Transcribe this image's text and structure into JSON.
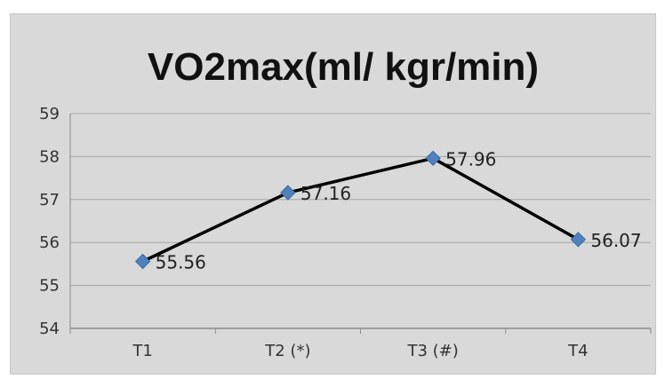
{
  "chart_data": {
    "type": "line",
    "title": "VO2max(ml/ kgr/min)",
    "xlabel": "",
    "ylabel": "",
    "categories": [
      "T1",
      "T2 (*)",
      "T3 (#)",
      "T4"
    ],
    "series": [
      {
        "values": [
          55.56,
          57.16,
          57.96,
          56.07
        ],
        "data_labels": [
          "55.56",
          "57.16",
          "57.96",
          "56.07"
        ]
      }
    ],
    "ylim": [
      54,
      59
    ],
    "yticks": [
      54,
      55,
      56,
      57,
      58,
      59
    ],
    "grid": true,
    "legend": "none",
    "colors": {
      "line": "#000000",
      "marker": "#4f81bd",
      "background": "#d9d9d9",
      "grid": "#a6a6a6"
    }
  }
}
